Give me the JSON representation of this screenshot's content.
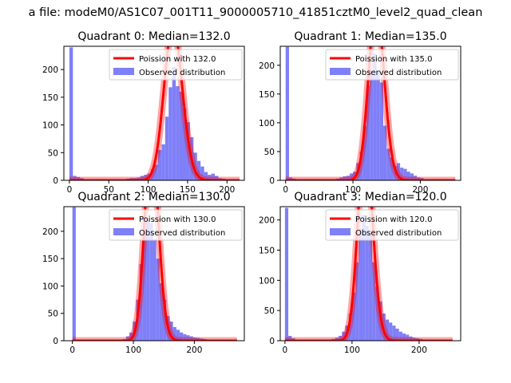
{
  "figure": {
    "suptitle": "a file: modeM0/AS1C07_001T11_9000005710_41851cztM0_level2_quad_clean"
  },
  "colors": {
    "hist": "#7f7ff8",
    "fit": "#ff0000",
    "axis": "#000000"
  },
  "chart_data": [
    {
      "type": "bar",
      "title": "Quadrant 0: Median=132.0",
      "median": 132.0,
      "xlim": [
        -7,
        222
      ],
      "ylim": [
        0,
        242
      ],
      "xticks": [
        "0",
        "50",
        "100",
        "150",
        "200"
      ],
      "xtick_values": [
        0,
        50,
        100,
        150,
        200
      ],
      "yticks": [
        "0",
        "50",
        "100",
        "150",
        "200"
      ],
      "ytick_values": [
        0,
        50,
        100,
        150,
        200
      ],
      "legend": [
        "Poission with 132.0",
        "Observed distribution"
      ],
      "legend_position": "top-right",
      "hist_bins": [
        {
          "x0": 0,
          "x1": 4.5,
          "count": 240
        },
        {
          "x0": 4.5,
          "x1": 9,
          "count": 8
        },
        {
          "x0": 9,
          "x1": 13.5,
          "count": 6
        },
        {
          "x0": 13.5,
          "x1": 18,
          "count": 4
        },
        {
          "x0": 18,
          "x1": 22.5,
          "count": 2
        },
        {
          "x0": 22.5,
          "x1": 27,
          "count": 2
        },
        {
          "x0": 27,
          "x1": 31.5,
          "count": 1
        },
        {
          "x0": 31.5,
          "x1": 36,
          "count": 1
        },
        {
          "x0": 36,
          "x1": 40.5,
          "count": 1
        },
        {
          "x0": 40.5,
          "x1": 45,
          "count": 1
        },
        {
          "x0": 45,
          "x1": 49.5,
          "count": 1
        },
        {
          "x0": 49.5,
          "x1": 54,
          "count": 1
        },
        {
          "x0": 54,
          "x1": 58.5,
          "count": 1
        },
        {
          "x0": 58.5,
          "x1": 63,
          "count": 1
        },
        {
          "x0": 63,
          "x1": 67.5,
          "count": 2
        },
        {
          "x0": 67.5,
          "x1": 72,
          "count": 2
        },
        {
          "x0": 72,
          "x1": 76.5,
          "count": 3
        },
        {
          "x0": 76.5,
          "x1": 81,
          "count": 4
        },
        {
          "x0": 81,
          "x1": 85.5,
          "count": 4
        },
        {
          "x0": 85.5,
          "x1": 90,
          "count": 5
        },
        {
          "x0": 90,
          "x1": 94.5,
          "count": 8
        },
        {
          "x0": 94.5,
          "x1": 99,
          "count": 10
        },
        {
          "x0": 99,
          "x1": 103.5,
          "count": 12
        },
        {
          "x0": 103.5,
          "x1": 108,
          "count": 20
        },
        {
          "x0": 108,
          "x1": 112.5,
          "count": 28
        },
        {
          "x0": 112.5,
          "x1": 117,
          "count": 55
        },
        {
          "x0": 117,
          "x1": 121.5,
          "count": 65
        },
        {
          "x0": 121.5,
          "x1": 126,
          "count": 115
        },
        {
          "x0": 126,
          "x1": 130.5,
          "count": 168
        },
        {
          "x0": 130.5,
          "x1": 135,
          "count": 205
        },
        {
          "x0": 135,
          "x1": 139.5,
          "count": 170
        },
        {
          "x0": 139.5,
          "x1": 144,
          "count": 160
        },
        {
          "x0": 144,
          "x1": 148.5,
          "count": 130
        },
        {
          "x0": 148.5,
          "x1": 153,
          "count": 105
        },
        {
          "x0": 153,
          "x1": 157.5,
          "count": 78
        },
        {
          "x0": 157.5,
          "x1": 162,
          "count": 50
        },
        {
          "x0": 162,
          "x1": 166.5,
          "count": 35
        },
        {
          "x0": 166.5,
          "x1": 171,
          "count": 25
        },
        {
          "x0": 171,
          "x1": 175.5,
          "count": 15
        },
        {
          "x0": 175.5,
          "x1": 180,
          "count": 10
        },
        {
          "x0": 180,
          "x1": 184.5,
          "count": 12
        },
        {
          "x0": 184.5,
          "x1": 189,
          "count": 8
        },
        {
          "x0": 189,
          "x1": 193.5,
          "count": 4
        },
        {
          "x0": 193.5,
          "x1": 198,
          "count": 3
        },
        {
          "x0": 198,
          "x1": 202.5,
          "count": 2
        },
        {
          "x0": 202.5,
          "x1": 207,
          "count": 2
        },
        {
          "x0": 207,
          "x1": 211.5,
          "count": 1
        },
        {
          "x0": 211.5,
          "x1": 216,
          "count": 1
        }
      ],
      "fit_range": [
        0,
        216
      ]
    },
    {
      "type": "bar",
      "title": "Quadrant 1: Median=135.0",
      "median": 135.0,
      "xlim": [
        -8,
        260
      ],
      "ylim": [
        0,
        233
      ],
      "xticks": [
        "0",
        "100",
        "200"
      ],
      "xtick_values": [
        0,
        100,
        200
      ],
      "yticks": [
        "0",
        "50",
        "100",
        "150",
        "200"
      ],
      "ytick_values": [
        0,
        50,
        100,
        150,
        200
      ],
      "legend": [
        "Poission with 135.0",
        "Observed distribution"
      ],
      "legend_position": "top-right",
      "hist_bins": [
        {
          "x0": 0,
          "x1": 5,
          "count": 232
        },
        {
          "x0": 5,
          "x1": 10,
          "count": 5
        },
        {
          "x0": 10,
          "x1": 15,
          "count": 3
        },
        {
          "x0": 15,
          "x1": 20,
          "count": 2
        },
        {
          "x0": 20,
          "x1": 25,
          "count": 2
        },
        {
          "x0": 25,
          "x1": 30,
          "count": 1
        },
        {
          "x0": 30,
          "x1": 35,
          "count": 1
        },
        {
          "x0": 35,
          "x1": 40,
          "count": 1
        },
        {
          "x0": 40,
          "x1": 45,
          "count": 1
        },
        {
          "x0": 45,
          "x1": 50,
          "count": 1
        },
        {
          "x0": 50,
          "x1": 55,
          "count": 1
        },
        {
          "x0": 55,
          "x1": 60,
          "count": 1
        },
        {
          "x0": 60,
          "x1": 65,
          "count": 1
        },
        {
          "x0": 65,
          "x1": 70,
          "count": 2
        },
        {
          "x0": 70,
          "x1": 75,
          "count": 2
        },
        {
          "x0": 75,
          "x1": 80,
          "count": 3
        },
        {
          "x0": 80,
          "x1": 85,
          "count": 5
        },
        {
          "x0": 85,
          "x1": 90,
          "count": 7
        },
        {
          "x0": 90,
          "x1": 95,
          "count": 8
        },
        {
          "x0": 95,
          "x1": 100,
          "count": 12
        },
        {
          "x0": 100,
          "x1": 105,
          "count": 15
        },
        {
          "x0": 105,
          "x1": 110,
          "count": 30
        },
        {
          "x0": 110,
          "x1": 115,
          "count": 50
        },
        {
          "x0": 115,
          "x1": 120,
          "count": 95
        },
        {
          "x0": 120,
          "x1": 125,
          "count": 165
        },
        {
          "x0": 125,
          "x1": 130,
          "count": 190
        },
        {
          "x0": 130,
          "x1": 135,
          "count": 220
        },
        {
          "x0": 135,
          "x1": 140,
          "count": 190
        },
        {
          "x0": 140,
          "x1": 145,
          "count": 170
        },
        {
          "x0": 145,
          "x1": 150,
          "count": 95
        },
        {
          "x0": 150,
          "x1": 155,
          "count": 55
        },
        {
          "x0": 155,
          "x1": 160,
          "count": 40
        },
        {
          "x0": 160,
          "x1": 165,
          "count": 25
        },
        {
          "x0": 165,
          "x1": 170,
          "count": 30
        },
        {
          "x0": 170,
          "x1": 175,
          "count": 22
        },
        {
          "x0": 175,
          "x1": 180,
          "count": 20
        },
        {
          "x0": 180,
          "x1": 185,
          "count": 15
        },
        {
          "x0": 185,
          "x1": 190,
          "count": 12
        },
        {
          "x0": 190,
          "x1": 195,
          "count": 8
        },
        {
          "x0": 195,
          "x1": 200,
          "count": 5
        },
        {
          "x0": 200,
          "x1": 205,
          "count": 4
        },
        {
          "x0": 205,
          "x1": 210,
          "count": 2
        },
        {
          "x0": 210,
          "x1": 215,
          "count": 2
        },
        {
          "x0": 215,
          "x1": 220,
          "count": 1
        },
        {
          "x0": 220,
          "x1": 225,
          "count": 1
        },
        {
          "x0": 225,
          "x1": 230,
          "count": 1
        }
      ],
      "fit_range": [
        0,
        252
      ]
    },
    {
      "type": "bar",
      "title": "Quadrant 2: Median=130.0",
      "median": 130.0,
      "xlim": [
        -14,
        282
      ],
      "ylim": [
        0,
        245
      ],
      "xticks": [
        "0",
        "100",
        "200"
      ],
      "xtick_values": [
        0,
        100,
        200
      ],
      "yticks": [
        "0",
        "50",
        "100",
        "150",
        "200"
      ],
      "ytick_values": [
        0,
        50,
        100,
        150,
        200
      ],
      "legend": [
        "Poission with 130.0",
        "Observed distribution"
      ],
      "legend_position": "top-right",
      "hist_bins": [
        {
          "x0": 0,
          "x1": 5.5,
          "count": 244
        },
        {
          "x0": 5.5,
          "x1": 11,
          "count": 1
        },
        {
          "x0": 11,
          "x1": 16.5,
          "count": 1
        },
        {
          "x0": 16.5,
          "x1": 22,
          "count": 1
        },
        {
          "x0": 22,
          "x1": 27.5,
          "count": 1
        },
        {
          "x0": 27.5,
          "x1": 33,
          "count": 1
        },
        {
          "x0": 33,
          "x1": 38.5,
          "count": 1
        },
        {
          "x0": 38.5,
          "x1": 44,
          "count": 1
        },
        {
          "x0": 44,
          "x1": 49.5,
          "count": 1
        },
        {
          "x0": 49.5,
          "x1": 55,
          "count": 1
        },
        {
          "x0": 55,
          "x1": 60.5,
          "count": 1
        },
        {
          "x0": 60.5,
          "x1": 66,
          "count": 1
        },
        {
          "x0": 66,
          "x1": 71.5,
          "count": 1
        },
        {
          "x0": 71.5,
          "x1": 77,
          "count": 2
        },
        {
          "x0": 77,
          "x1": 82.5,
          "count": 2
        },
        {
          "x0": 82.5,
          "x1": 88,
          "count": 3
        },
        {
          "x0": 88,
          "x1": 93.5,
          "count": 8
        },
        {
          "x0": 93.5,
          "x1": 99,
          "count": 15
        },
        {
          "x0": 99,
          "x1": 104.5,
          "count": 35
        },
        {
          "x0": 104.5,
          "x1": 110,
          "count": 75
        },
        {
          "x0": 110,
          "x1": 115.5,
          "count": 140
        },
        {
          "x0": 115.5,
          "x1": 121,
          "count": 195
        },
        {
          "x0": 121,
          "x1": 126.5,
          "count": 222
        },
        {
          "x0": 126.5,
          "x1": 132,
          "count": 215
        },
        {
          "x0": 132,
          "x1": 137.5,
          "count": 185
        },
        {
          "x0": 137.5,
          "x1": 143,
          "count": 150
        },
        {
          "x0": 143,
          "x1": 148.5,
          "count": 105
        },
        {
          "x0": 148.5,
          "x1": 154,
          "count": 75
        },
        {
          "x0": 154,
          "x1": 159.5,
          "count": 45
        },
        {
          "x0": 159.5,
          "x1": 165,
          "count": 35
        },
        {
          "x0": 165,
          "x1": 170.5,
          "count": 25
        },
        {
          "x0": 170.5,
          "x1": 176,
          "count": 20
        },
        {
          "x0": 176,
          "x1": 181.5,
          "count": 15
        },
        {
          "x0": 181.5,
          "x1": 187,
          "count": 12
        },
        {
          "x0": 187,
          "x1": 192.5,
          "count": 10
        },
        {
          "x0": 192.5,
          "x1": 198,
          "count": 8
        },
        {
          "x0": 198,
          "x1": 203.5,
          "count": 6
        },
        {
          "x0": 203.5,
          "x1": 209,
          "count": 5
        },
        {
          "x0": 209,
          "x1": 214.5,
          "count": 4
        },
        {
          "x0": 214.5,
          "x1": 220,
          "count": 3
        },
        {
          "x0": 220,
          "x1": 225.5,
          "count": 2
        },
        {
          "x0": 225.5,
          "x1": 231,
          "count": 2
        },
        {
          "x0": 231,
          "x1": 236.5,
          "count": 1
        },
        {
          "x0": 236.5,
          "x1": 242,
          "count": 1
        },
        {
          "x0": 242,
          "x1": 247.5,
          "count": 1
        },
        {
          "x0": 247.5,
          "x1": 253,
          "count": 1
        }
      ],
      "fit_range": [
        0,
        270
      ]
    },
    {
      "type": "bar",
      "title": "Quadrant 3: Median=120.0",
      "median": 120.0,
      "xlim": [
        -7,
        262
      ],
      "ylim": [
        0,
        222
      ],
      "xticks": [
        "0",
        "100",
        "200"
      ],
      "xtick_values": [
        0,
        100,
        200
      ],
      "yticks": [
        "0",
        "50",
        "100",
        "150",
        "200"
      ],
      "ytick_values": [
        0,
        50,
        100,
        150,
        200
      ],
      "legend": [
        "Poission with 120.0",
        "Observed distribution"
      ],
      "legend_position": "top-right",
      "hist_bins": [
        {
          "x0": 0,
          "x1": 5,
          "count": 220
        },
        {
          "x0": 5,
          "x1": 10,
          "count": 8
        },
        {
          "x0": 10,
          "x1": 15,
          "count": 4
        },
        {
          "x0": 15,
          "x1": 20,
          "count": 2
        },
        {
          "x0": 20,
          "x1": 25,
          "count": 1
        },
        {
          "x0": 25,
          "x1": 30,
          "count": 1
        },
        {
          "x0": 30,
          "x1": 35,
          "count": 1
        },
        {
          "x0": 35,
          "x1": 40,
          "count": 1
        },
        {
          "x0": 40,
          "x1": 45,
          "count": 1
        },
        {
          "x0": 45,
          "x1": 50,
          "count": 1
        },
        {
          "x0": 50,
          "x1": 55,
          "count": 1
        },
        {
          "x0": 55,
          "x1": 60,
          "count": 1
        },
        {
          "x0": 60,
          "x1": 65,
          "count": 2
        },
        {
          "x0": 65,
          "x1": 70,
          "count": 2
        },
        {
          "x0": 70,
          "x1": 75,
          "count": 3
        },
        {
          "x0": 75,
          "x1": 80,
          "count": 5
        },
        {
          "x0": 80,
          "x1": 85,
          "count": 8
        },
        {
          "x0": 85,
          "x1": 90,
          "count": 15
        },
        {
          "x0": 90,
          "x1": 95,
          "count": 25
        },
        {
          "x0": 95,
          "x1": 100,
          "count": 45
        },
        {
          "x0": 100,
          "x1": 105,
          "count": 80
        },
        {
          "x0": 105,
          "x1": 110,
          "count": 130
        },
        {
          "x0": 110,
          "x1": 115,
          "count": 185
        },
        {
          "x0": 115,
          "x1": 120,
          "count": 208
        },
        {
          "x0": 120,
          "x1": 125,
          "count": 190
        },
        {
          "x0": 125,
          "x1": 130,
          "count": 175
        },
        {
          "x0": 130,
          "x1": 135,
          "count": 130
        },
        {
          "x0": 135,
          "x1": 140,
          "count": 90
        },
        {
          "x0": 140,
          "x1": 145,
          "count": 65
        },
        {
          "x0": 145,
          "x1": 150,
          "count": 45
        },
        {
          "x0": 150,
          "x1": 155,
          "count": 35
        },
        {
          "x0": 155,
          "x1": 160,
          "count": 30
        },
        {
          "x0": 160,
          "x1": 165,
          "count": 25
        },
        {
          "x0": 165,
          "x1": 170,
          "count": 20
        },
        {
          "x0": 170,
          "x1": 175,
          "count": 15
        },
        {
          "x0": 175,
          "x1": 180,
          "count": 12
        },
        {
          "x0": 180,
          "x1": 185,
          "count": 10
        },
        {
          "x0": 185,
          "x1": 190,
          "count": 7
        },
        {
          "x0": 190,
          "x1": 195,
          "count": 5
        },
        {
          "x0": 195,
          "x1": 200,
          "count": 4
        },
        {
          "x0": 200,
          "x1": 205,
          "count": 3
        },
        {
          "x0": 205,
          "x1": 210,
          "count": 2
        },
        {
          "x0": 210,
          "x1": 215,
          "count": 2
        },
        {
          "x0": 215,
          "x1": 220,
          "count": 1
        },
        {
          "x0": 220,
          "x1": 225,
          "count": 1
        },
        {
          "x0": 225,
          "x1": 230,
          "count": 1
        }
      ],
      "fit_range": [
        0,
        250
      ]
    }
  ]
}
